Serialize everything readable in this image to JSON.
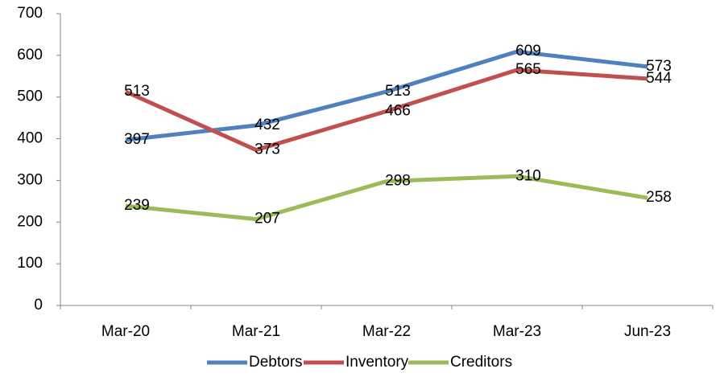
{
  "chart_data": {
    "type": "line",
    "categories": [
      "Mar-20",
      "Mar-21",
      "Mar-22",
      "Mar-23",
      "Jun-23"
    ],
    "series": [
      {
        "name": "Debtors",
        "color": "#4f81bd",
        "values": [
          397,
          432,
          513,
          609,
          573
        ]
      },
      {
        "name": "Inventory",
        "color": "#c0504d",
        "values": [
          513,
          373,
          466,
          565,
          544
        ]
      },
      {
        "name": "Creditors",
        "color": "#9bbb59",
        "values": [
          239,
          207,
          298,
          310,
          258
        ]
      }
    ],
    "ylim": [
      0,
      700
    ],
    "yticks": [
      0,
      100,
      200,
      300,
      400,
      500,
      600,
      700
    ],
    "grid": false,
    "legend": "bottom",
    "data_labels": true
  }
}
